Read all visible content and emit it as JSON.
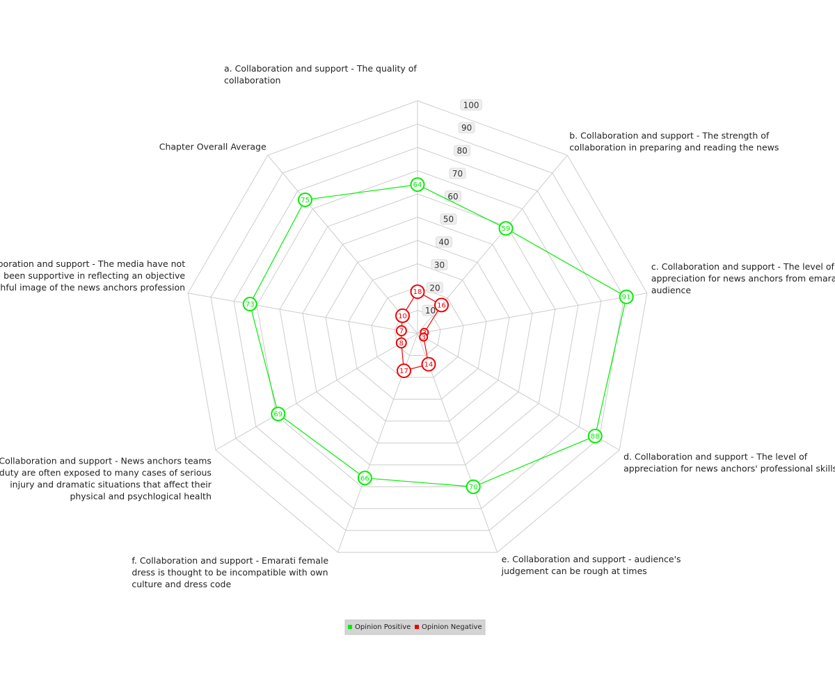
{
  "chart_data": {
    "type": "radar",
    "rmax": 100,
    "ticks": [
      10,
      20,
      30,
      40,
      50,
      60,
      70,
      80,
      90,
      100
    ],
    "axes": [
      {
        "label": [
          "a. Collaboration and support - The quality of",
          "collaboration"
        ]
      },
      {
        "label": [
          "b. Collaboration and support - The strength of",
          "collaboration in preparing and reading the news"
        ]
      },
      {
        "label": [
          "c. Collaboration and support - The level of",
          "appreciation for news anchors from emarati",
          "audience"
        ]
      },
      {
        "label": [
          "d. Collaboration and support - The level of",
          "appreciation for news anchors' professional skills"
        ]
      },
      {
        "label": [
          "e. Collaboration and support - audience's",
          "judgement can be rough at times"
        ]
      },
      {
        "label": [
          "f. Collaboration and support - Emarati female",
          "dress is thought to be incompatible with own",
          "culture and dress code"
        ]
      },
      {
        "label": [
          "g. Collaboration and support - News anchors teams",
          "on duty are often exposed to many cases of serious",
          "injury and dramatic situations that affect their",
          "physical and psychlogical health"
        ]
      },
      {
        "label": [
          "h. Collaboration and support - The media have not",
          "been supportive in reflecting an objective",
          "and truthful image of the news anchors profession"
        ]
      },
      {
        "label": [
          "Chapter Overall Average"
        ]
      }
    ],
    "series": [
      {
        "name": "Opinion Positive",
        "color": "#00ee00",
        "values": [
          64,
          59,
          91,
          88,
          70,
          66,
          69,
          73,
          75
        ]
      },
      {
        "name": "Opinion Negative",
        "color": "#ee0000",
        "values": [
          18,
          16,
          3,
          3,
          14,
          17,
          8,
          7,
          10
        ]
      }
    ]
  }
}
